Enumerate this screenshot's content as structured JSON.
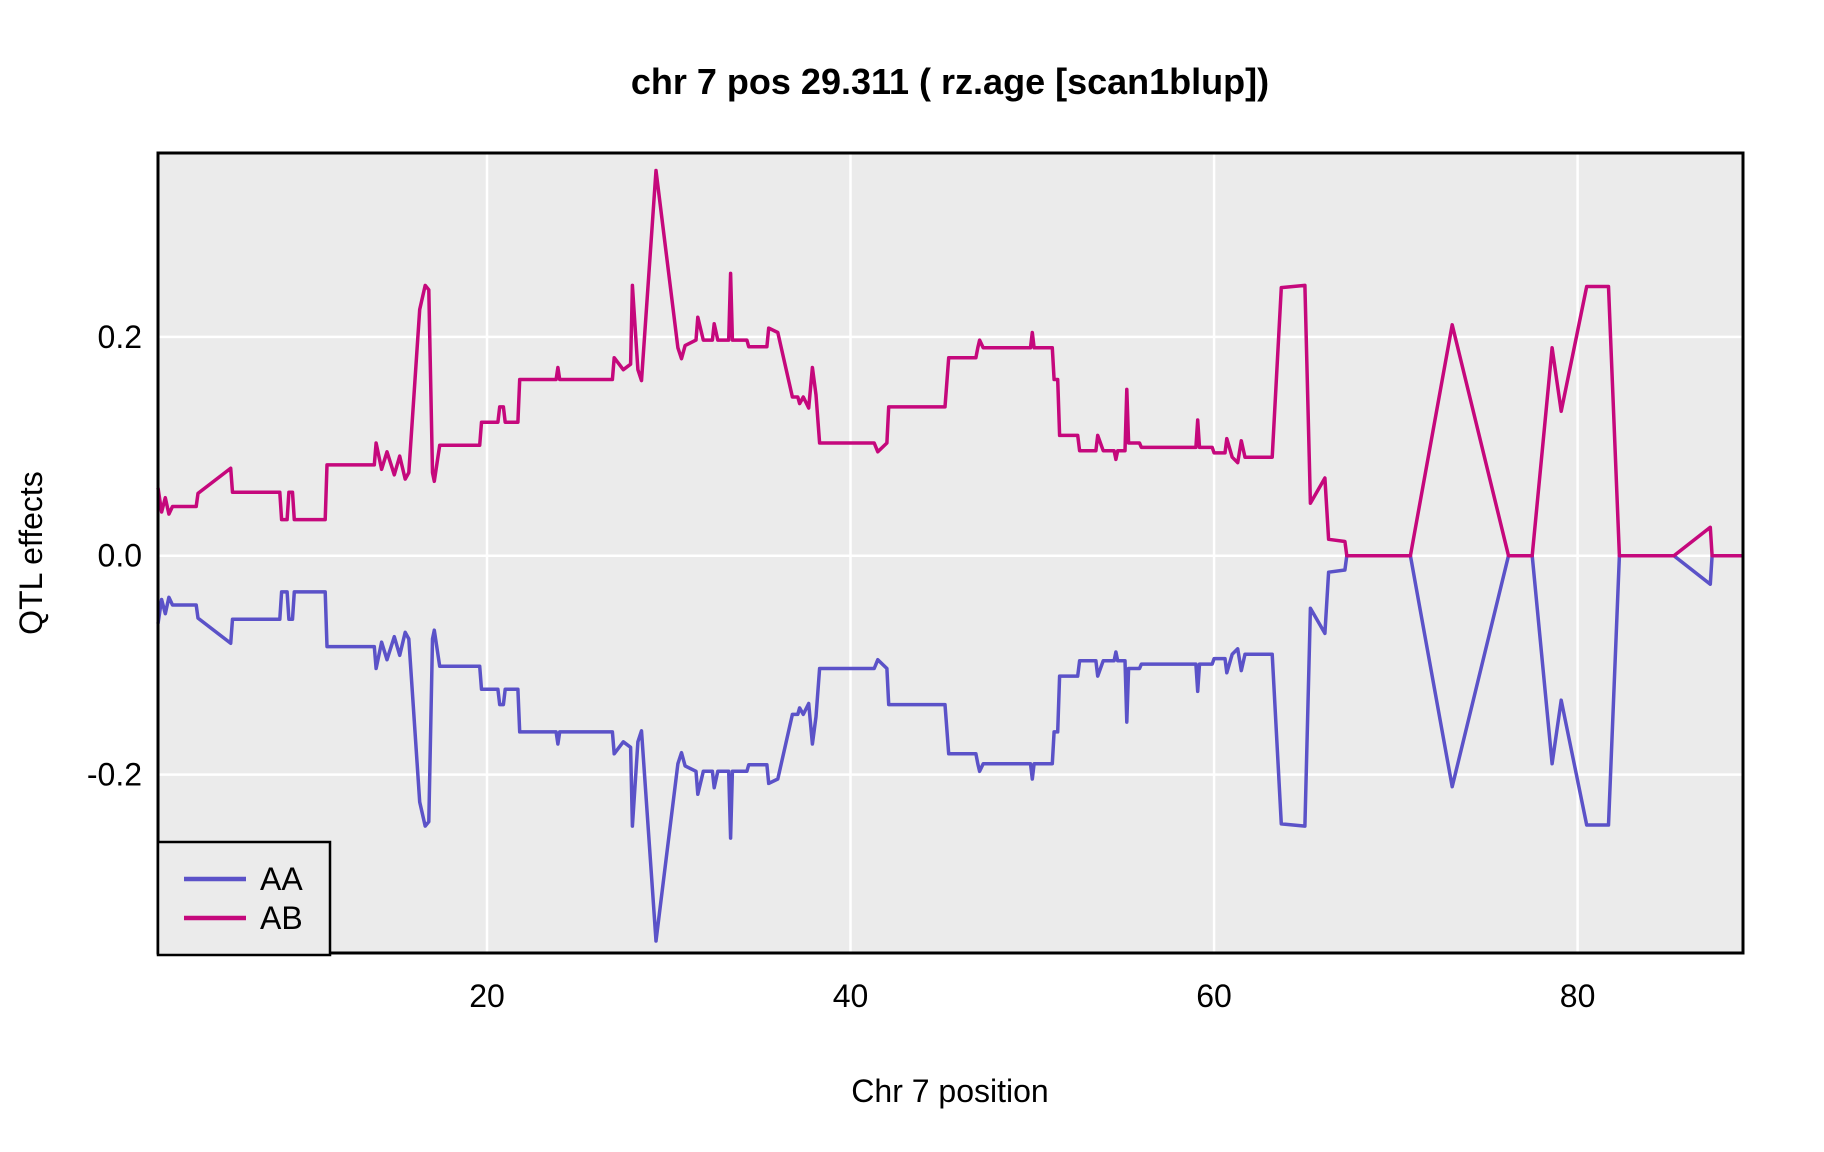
{
  "chart_data": {
    "type": "line",
    "title": "chr 7 pos 29.311 ( rz.age  [scan1blup])",
    "xlabel": "Chr 7 position",
    "ylabel": "QTL effects",
    "xlim": [
      1.9,
      89.1
    ],
    "ylim": [
      -0.363,
      0.368
    ],
    "grid": "major-only",
    "legend_position": "bottom-left",
    "panel_bg": "#ebebeb",
    "grid_color": "#ffffff",
    "border_color": "#000000",
    "x_ticks": [
      {
        "value": 20,
        "label": "20"
      },
      {
        "value": 40,
        "label": "40"
      },
      {
        "value": 60,
        "label": "60"
      },
      {
        "value": 80,
        "label": "80"
      }
    ],
    "y_ticks": [
      {
        "value": 0.2,
        "label": "0.2"
      },
      {
        "value": 0.0,
        "label": "0.0"
      },
      {
        "value": -0.2,
        "label": "-0.2"
      }
    ],
    "series": [
      {
        "name": "AA",
        "color": "#5b52c8",
        "points": [
          [
            1.9,
            -0.062
          ],
          [
            2.1,
            -0.04
          ],
          [
            2.3,
            -0.053
          ],
          [
            2.5,
            -0.038
          ],
          [
            2.7,
            -0.045
          ],
          [
            4,
            -0.045
          ],
          [
            4.1,
            -0.057
          ],
          [
            5.9,
            -0.08
          ],
          [
            6,
            -0.058
          ],
          [
            8.6,
            -0.058
          ],
          [
            8.7,
            -0.033
          ],
          [
            9,
            -0.033
          ],
          [
            9.1,
            -0.058
          ],
          [
            9.3,
            -0.058
          ],
          [
            9.4,
            -0.033
          ],
          [
            11.1,
            -0.033
          ],
          [
            11.2,
            -0.083
          ],
          [
            13.8,
            -0.083
          ],
          [
            13.9,
            -0.103
          ],
          [
            14.2,
            -0.079
          ],
          [
            14.5,
            -0.095
          ],
          [
            14.9,
            -0.074
          ],
          [
            15.2,
            -0.091
          ],
          [
            15.5,
            -0.07
          ],
          [
            15.7,
            -0.076
          ],
          [
            16.3,
            -0.225
          ],
          [
            16.6,
            -0.247
          ],
          [
            16.8,
            -0.243
          ],
          [
            17,
            -0.076
          ],
          [
            17.1,
            -0.068
          ],
          [
            17.4,
            -0.101
          ],
          [
            19.6,
            -0.101
          ],
          [
            19.7,
            -0.122
          ],
          [
            20.6,
            -0.122
          ],
          [
            20.7,
            -0.136
          ],
          [
            20.9,
            -0.136
          ],
          [
            21,
            -0.122
          ],
          [
            21.7,
            -0.122
          ],
          [
            21.8,
            -0.161
          ],
          [
            23.8,
            -0.161
          ],
          [
            23.9,
            -0.172
          ],
          [
            24,
            -0.161
          ],
          [
            26.9,
            -0.161
          ],
          [
            27,
            -0.181
          ],
          [
            27.5,
            -0.17
          ],
          [
            27.9,
            -0.175
          ],
          [
            28,
            -0.247
          ],
          [
            28.3,
            -0.17
          ],
          [
            28.5,
            -0.16
          ],
          [
            29.3,
            -0.352
          ],
          [
            30.5,
            -0.19
          ],
          [
            30.7,
            -0.18
          ],
          [
            30.9,
            -0.192
          ],
          [
            31.5,
            -0.197
          ],
          [
            31.6,
            -0.218
          ],
          [
            31.9,
            -0.197
          ],
          [
            32.4,
            -0.197
          ],
          [
            32.5,
            -0.212
          ],
          [
            32.7,
            -0.197
          ],
          [
            33.3,
            -0.197
          ],
          [
            33.4,
            -0.258
          ],
          [
            33.5,
            -0.197
          ],
          [
            34.3,
            -0.197
          ],
          [
            34.4,
            -0.191
          ],
          [
            35.4,
            -0.191
          ],
          [
            35.5,
            -0.208
          ],
          [
            36,
            -0.204
          ],
          [
            36.8,
            -0.145
          ],
          [
            37.1,
            -0.145
          ],
          [
            37.2,
            -0.139
          ],
          [
            37.4,
            -0.145
          ],
          [
            37.7,
            -0.135
          ],
          [
            37.9,
            -0.172
          ],
          [
            38.1,
            -0.147
          ],
          [
            38.3,
            -0.103
          ],
          [
            41.3,
            -0.103
          ],
          [
            41.5,
            -0.095
          ],
          [
            42,
            -0.103
          ],
          [
            42.1,
            -0.136
          ],
          [
            45.2,
            -0.136
          ],
          [
            45.4,
            -0.181
          ],
          [
            46.9,
            -0.181
          ],
          [
            47,
            -0.19
          ],
          [
            47.1,
            -0.197
          ],
          [
            47.3,
            -0.19
          ],
          [
            49.9,
            -0.19
          ],
          [
            50,
            -0.204
          ],
          [
            50.1,
            -0.19
          ],
          [
            51.1,
            -0.19
          ],
          [
            51.2,
            -0.161
          ],
          [
            51.4,
            -0.161
          ],
          [
            51.5,
            -0.11
          ],
          [
            52.5,
            -0.11
          ],
          [
            52.6,
            -0.096
          ],
          [
            53.5,
            -0.096
          ],
          [
            53.6,
            -0.11
          ],
          [
            53.9,
            -0.096
          ],
          [
            54.5,
            -0.096
          ],
          [
            54.6,
            -0.088
          ],
          [
            54.7,
            -0.096
          ],
          [
            55.1,
            -0.096
          ],
          [
            55.2,
            -0.152
          ],
          [
            55.3,
            -0.103
          ],
          [
            55.9,
            -0.103
          ],
          [
            56,
            -0.099
          ],
          [
            59,
            -0.099
          ],
          [
            59.1,
            -0.124
          ],
          [
            59.2,
            -0.099
          ],
          [
            59.9,
            -0.099
          ],
          [
            60,
            -0.094
          ],
          [
            60.6,
            -0.094
          ],
          [
            60.7,
            -0.107
          ],
          [
            61,
            -0.09
          ],
          [
            61.3,
            -0.085
          ],
          [
            61.5,
            -0.105
          ],
          [
            61.7,
            -0.09
          ],
          [
            63.2,
            -0.09
          ],
          [
            63.7,
            -0.245
          ],
          [
            65,
            -0.247
          ],
          [
            65.3,
            -0.048
          ],
          [
            66.1,
            -0.071
          ],
          [
            66.3,
            -0.015
          ],
          [
            67.2,
            -0.013
          ],
          [
            67.3,
            0
          ],
          [
            70.8,
            0
          ],
          [
            73.1,
            -0.211
          ],
          [
            76.2,
            0
          ],
          [
            77.5,
            0
          ],
          [
            78.6,
            -0.19
          ],
          [
            79.1,
            -0.132
          ],
          [
            80.5,
            -0.246
          ],
          [
            81.7,
            -0.246
          ],
          [
            82.3,
            0
          ],
          [
            85.3,
            0
          ],
          [
            87.3,
            -0.026
          ],
          [
            87.4,
            0
          ],
          [
            89.1,
            0
          ]
        ]
      },
      {
        "name": "AB",
        "color": "#c5087c",
        "points": [
          [
            1.9,
            0.062
          ],
          [
            2.1,
            0.04
          ],
          [
            2.3,
            0.053
          ],
          [
            2.5,
            0.038
          ],
          [
            2.7,
            0.045
          ],
          [
            4,
            0.045
          ],
          [
            4.1,
            0.057
          ],
          [
            5.9,
            0.08
          ],
          [
            6,
            0.058
          ],
          [
            8.6,
            0.058
          ],
          [
            8.7,
            0.033
          ],
          [
            9,
            0.033
          ],
          [
            9.1,
            0.058
          ],
          [
            9.3,
            0.058
          ],
          [
            9.4,
            0.033
          ],
          [
            11.1,
            0.033
          ],
          [
            11.2,
            0.083
          ],
          [
            13.8,
            0.083
          ],
          [
            13.9,
            0.103
          ],
          [
            14.2,
            0.079
          ],
          [
            14.5,
            0.095
          ],
          [
            14.9,
            0.074
          ],
          [
            15.2,
            0.091
          ],
          [
            15.5,
            0.07
          ],
          [
            15.7,
            0.076
          ],
          [
            16.3,
            0.225
          ],
          [
            16.6,
            0.247
          ],
          [
            16.8,
            0.243
          ],
          [
            17,
            0.076
          ],
          [
            17.1,
            0.068
          ],
          [
            17.4,
            0.101
          ],
          [
            19.6,
            0.101
          ],
          [
            19.7,
            0.122
          ],
          [
            20.6,
            0.122
          ],
          [
            20.7,
            0.136
          ],
          [
            20.9,
            0.136
          ],
          [
            21,
            0.122
          ],
          [
            21.7,
            0.122
          ],
          [
            21.8,
            0.161
          ],
          [
            23.8,
            0.161
          ],
          [
            23.9,
            0.172
          ],
          [
            24,
            0.161
          ],
          [
            26.9,
            0.161
          ],
          [
            27,
            0.181
          ],
          [
            27.5,
            0.17
          ],
          [
            27.9,
            0.175
          ],
          [
            28,
            0.247
          ],
          [
            28.3,
            0.17
          ],
          [
            28.5,
            0.16
          ],
          [
            29.3,
            0.352
          ],
          [
            30.5,
            0.19
          ],
          [
            30.7,
            0.18
          ],
          [
            30.9,
            0.192
          ],
          [
            31.5,
            0.197
          ],
          [
            31.6,
            0.218
          ],
          [
            31.9,
            0.197
          ],
          [
            32.4,
            0.197
          ],
          [
            32.5,
            0.212
          ],
          [
            32.7,
            0.197
          ],
          [
            33.3,
            0.197
          ],
          [
            33.4,
            0.258
          ],
          [
            33.5,
            0.197
          ],
          [
            34.3,
            0.197
          ],
          [
            34.4,
            0.191
          ],
          [
            35.4,
            0.191
          ],
          [
            35.5,
            0.208
          ],
          [
            36,
            0.204
          ],
          [
            36.8,
            0.145
          ],
          [
            37.1,
            0.145
          ],
          [
            37.2,
            0.139
          ],
          [
            37.4,
            0.145
          ],
          [
            37.7,
            0.135
          ],
          [
            37.9,
            0.172
          ],
          [
            38.1,
            0.147
          ],
          [
            38.3,
            0.103
          ],
          [
            41.3,
            0.103
          ],
          [
            41.5,
            0.095
          ],
          [
            42,
            0.103
          ],
          [
            42.1,
            0.136
          ],
          [
            45.2,
            0.136
          ],
          [
            45.4,
            0.181
          ],
          [
            46.9,
            0.181
          ],
          [
            47,
            0.19
          ],
          [
            47.1,
            0.197
          ],
          [
            47.3,
            0.19
          ],
          [
            49.9,
            0.19
          ],
          [
            50,
            0.204
          ],
          [
            50.1,
            0.19
          ],
          [
            51.1,
            0.19
          ],
          [
            51.2,
            0.161
          ],
          [
            51.4,
            0.161
          ],
          [
            51.5,
            0.11
          ],
          [
            52.5,
            0.11
          ],
          [
            52.6,
            0.096
          ],
          [
            53.5,
            0.096
          ],
          [
            53.6,
            0.11
          ],
          [
            53.9,
            0.096
          ],
          [
            54.5,
            0.096
          ],
          [
            54.6,
            0.088
          ],
          [
            54.7,
            0.096
          ],
          [
            55.1,
            0.096
          ],
          [
            55.2,
            0.152
          ],
          [
            55.3,
            0.103
          ],
          [
            55.9,
            0.103
          ],
          [
            56,
            0.099
          ],
          [
            59,
            0.099
          ],
          [
            59.1,
            0.124
          ],
          [
            59.2,
            0.099
          ],
          [
            59.9,
            0.099
          ],
          [
            60,
            0.094
          ],
          [
            60.6,
            0.094
          ],
          [
            60.7,
            0.107
          ],
          [
            61,
            0.09
          ],
          [
            61.3,
            0.085
          ],
          [
            61.5,
            0.105
          ],
          [
            61.7,
            0.09
          ],
          [
            63.2,
            0.09
          ],
          [
            63.7,
            0.245
          ],
          [
            65,
            0.247
          ],
          [
            65.3,
            0.048
          ],
          [
            66.1,
            0.071
          ],
          [
            66.3,
            0.015
          ],
          [
            67.2,
            0.013
          ],
          [
            67.3,
            0
          ],
          [
            70.8,
            0
          ],
          [
            73.1,
            0.211
          ],
          [
            76.2,
            0
          ],
          [
            77.5,
            0
          ],
          [
            78.6,
            0.19
          ],
          [
            79.1,
            0.132
          ],
          [
            80.5,
            0.246
          ],
          [
            81.7,
            0.246
          ],
          [
            82.3,
            0
          ],
          [
            85.3,
            0
          ],
          [
            87.3,
            0.026
          ],
          [
            87.4,
            0
          ],
          [
            89.1,
            0
          ]
        ]
      }
    ]
  }
}
